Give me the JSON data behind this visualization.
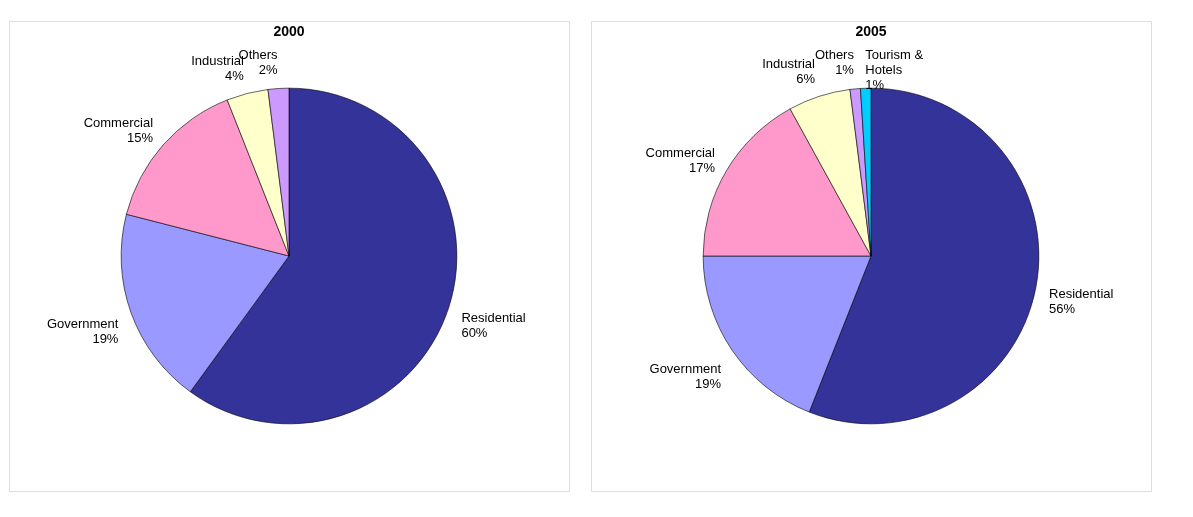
{
  "chart_data": [
    {
      "type": "pie",
      "title": "2000",
      "categories": [
        "Residential",
        "Government",
        "Commercial",
        "Industrial",
        "Others"
      ],
      "values": [
        60,
        19,
        15,
        4,
        2
      ],
      "colors": [
        "#333399",
        "#9999ff",
        "#ff99cc",
        "#ffffcc",
        "#cc99ff"
      ],
      "value_labels": [
        "60%",
        "19%",
        "15%",
        "4%",
        "2%"
      ],
      "legend": false
    },
    {
      "type": "pie",
      "title": "2005",
      "categories": [
        "Residential",
        "Government",
        "Commercial",
        "Industrial",
        "Others",
        "Tourism & Hotels"
      ],
      "values": [
        56,
        19,
        17,
        6,
        1,
        1
      ],
      "colors": [
        "#333399",
        "#9999ff",
        "#ff99cc",
        "#ffffcc",
        "#cc99ff",
        "#00ccff"
      ],
      "value_labels": [
        "56%",
        "19%",
        "17%",
        "6%",
        "1%",
        "1%"
      ],
      "legend": false
    }
  ]
}
